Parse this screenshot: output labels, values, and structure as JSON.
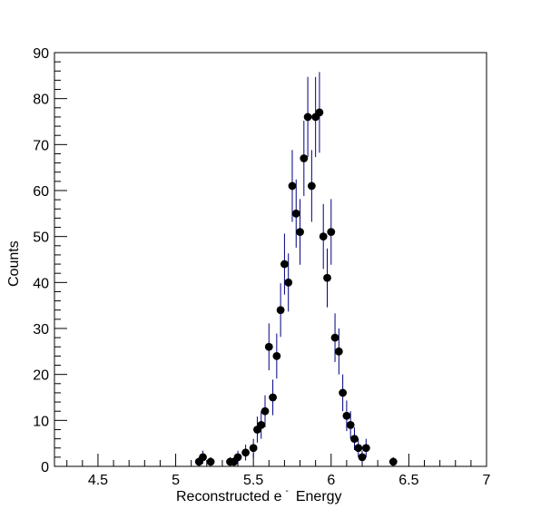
{
  "chart_data": {
    "type": "scatter",
    "title": "",
    "xlabel": "Reconstructed e",
    "xlabel_superscript": "-",
    "xlabel_suffix": "Energy",
    "ylabel": "Counts",
    "xlim": [
      4.22,
      7.0
    ],
    "ylim": [
      0,
      90
    ],
    "grid": false,
    "legend": "none",
    "x_ticks": [
      {
        "value": 4.5,
        "label": "4.5"
      },
      {
        "value": 5.0,
        "label": "5"
      },
      {
        "value": 5.5,
        "label": "5.5"
      },
      {
        "value": 6.0,
        "label": "6"
      },
      {
        "value": 6.5,
        "label": "6.5"
      },
      {
        "value": 7.0,
        "label": "7"
      }
    ],
    "y_ticks": [
      {
        "value": 0,
        "label": "0"
      },
      {
        "value": 10,
        "label": "10"
      },
      {
        "value": 20,
        "label": "20"
      },
      {
        "value": 30,
        "label": "30"
      },
      {
        "value": 40,
        "label": "40"
      },
      {
        "value": 50,
        "label": "50"
      },
      {
        "value": 60,
        "label": "60"
      },
      {
        "value": 70,
        "label": "70"
      },
      {
        "value": 80,
        "label": "80"
      },
      {
        "value": 90,
        "label": "90"
      }
    ],
    "colors": {
      "marker": "#000000",
      "error_bar": "#000080",
      "frame": "#000000"
    },
    "points": [
      {
        "x": 5.15,
        "y": 1
      },
      {
        "x": 5.175,
        "y": 2
      },
      {
        "x": 5.225,
        "y": 1
      },
      {
        "x": 5.35,
        "y": 1
      },
      {
        "x": 5.375,
        "y": 1
      },
      {
        "x": 5.4,
        "y": 2
      },
      {
        "x": 5.45,
        "y": 3
      },
      {
        "x": 5.5,
        "y": 4
      },
      {
        "x": 5.525,
        "y": 8
      },
      {
        "x": 5.55,
        "y": 9
      },
      {
        "x": 5.575,
        "y": 12
      },
      {
        "x": 5.6,
        "y": 26
      },
      {
        "x": 5.625,
        "y": 15
      },
      {
        "x": 5.65,
        "y": 24
      },
      {
        "x": 5.675,
        "y": 34
      },
      {
        "x": 5.7,
        "y": 44
      },
      {
        "x": 5.725,
        "y": 40
      },
      {
        "x": 5.75,
        "y": 61
      },
      {
        "x": 5.775,
        "y": 55
      },
      {
        "x": 5.8,
        "y": 51
      },
      {
        "x": 5.825,
        "y": 67
      },
      {
        "x": 5.85,
        "y": 76
      },
      {
        "x": 5.875,
        "y": 61
      },
      {
        "x": 5.9,
        "y": 76
      },
      {
        "x": 5.925,
        "y": 77
      },
      {
        "x": 5.95,
        "y": 50
      },
      {
        "x": 5.975,
        "y": 41
      },
      {
        "x": 6.0,
        "y": 51
      },
      {
        "x": 6.025,
        "y": 28
      },
      {
        "x": 6.05,
        "y": 25
      },
      {
        "x": 6.075,
        "y": 16
      },
      {
        "x": 6.1,
        "y": 11
      },
      {
        "x": 6.125,
        "y": 9
      },
      {
        "x": 6.15,
        "y": 6
      },
      {
        "x": 6.175,
        "y": 4
      },
      {
        "x": 6.2,
        "y": 2
      },
      {
        "x": 6.225,
        "y": 4
      },
      {
        "x": 6.4,
        "y": 1
      }
    ]
  }
}
